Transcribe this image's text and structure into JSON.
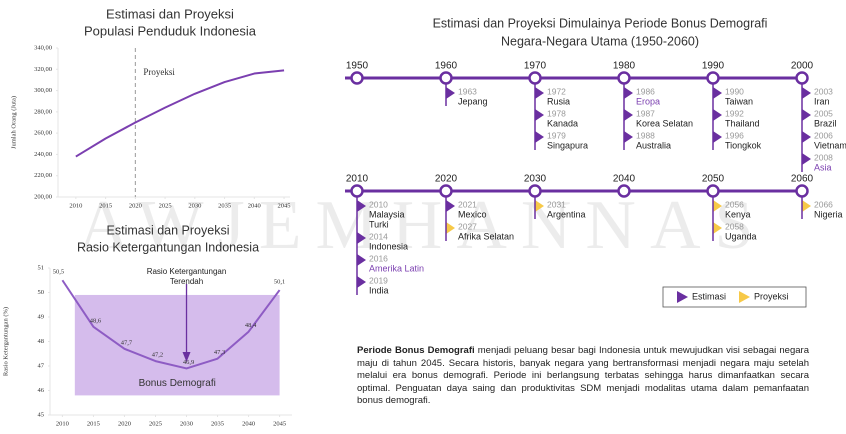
{
  "watermark": "AWJEMHANNAS",
  "chart_data": [
    {
      "type": "line",
      "title": [
        "Estimasi dan Proyeksi",
        "Populasi Penduduk Indonesia"
      ],
      "y_label": "Jumlah Orang (Juta)",
      "x": [
        2010,
        2015,
        2020,
        2025,
        2030,
        2035,
        2040,
        2045
      ],
      "series": [
        {
          "name": "Populasi",
          "color": "#7b3fb0",
          "values": [
            238,
            255,
            270,
            284,
            297,
            308,
            316,
            319
          ]
        }
      ],
      "xlim": [
        2007,
        2046
      ],
      "xticks": [
        2010,
        2015,
        2020,
        2025,
        2030,
        2035,
        2040,
        2045
      ],
      "ylim": [
        200,
        340
      ],
      "yticks": [
        {
          "value": 200,
          "label": "200,00"
        },
        {
          "value": 220,
          "label": "220,00"
        },
        {
          "value": 240,
          "label": "240,00"
        },
        {
          "value": 260,
          "label": "260,00"
        },
        {
          "value": 280,
          "label": "280,00"
        },
        {
          "value": 300,
          "label": "300,00"
        },
        {
          "value": 320,
          "label": "320,00"
        },
        {
          "value": 340,
          "label": "340,00"
        }
      ],
      "grid": false,
      "annotations": [
        {
          "text": [
            "Proyeksi"
          ],
          "x": 2020,
          "style": "dashed-line"
        }
      ]
    },
    {
      "type": "line",
      "title": [
        "Estimasi dan Proyeksi",
        "Rasio Ketergantungan Indonesia"
      ],
      "y_label": "Rasio Ketergantungan (%)",
      "x": [
        2010,
        2015,
        2020,
        2025,
        2030,
        2035,
        2040,
        2045
      ],
      "series": [
        {
          "name": "Rasio",
          "color": "#8e5cc4",
          "values": [
            50.5,
            48.6,
            47.7,
            47.2,
            46.9,
            47.3,
            48.4,
            50.1
          ],
          "value_labels": [
            "50,5",
            "48,6",
            "47,7",
            "47,2",
            "46,9",
            "47,3",
            "48,4",
            "50,1"
          ]
        }
      ],
      "xlim": [
        2008,
        2047
      ],
      "xticks": [
        2010,
        2015,
        2020,
        2025,
        2030,
        2035,
        2040,
        2045
      ],
      "ylim": [
        45,
        51
      ],
      "yticks": [
        45,
        46,
        47,
        48,
        49,
        50,
        51
      ],
      "grid": false,
      "band": {
        "label": "Bonus Demografi",
        "x": [
          2012,
          2045
        ],
        "y": [
          45.8,
          49.9
        ],
        "color": "#c7a6e6"
      },
      "annotations": [
        {
          "text": [
            "Rasio Ketergantungan",
            "Terendah"
          ],
          "x": 2030,
          "style": "arrow"
        }
      ]
    }
  ],
  "timeline": {
    "title": [
      "Estimasi dan Proyeksi Dimulainya Periode Bonus Demografi",
      "Negara-Negara Utama (1950-2060)"
    ],
    "rows": [
      {
        "decades": [
          {
            "label": "1950",
            "entries": []
          },
          {
            "label": "1960",
            "entries": [
              {
                "year": "1963",
                "names": [
                  "Jepang"
                ],
                "marker_color": "#6a2fa0"
              }
            ]
          },
          {
            "label": "1970",
            "entries": [
              {
                "year": "1972",
                "names": [
                  "Rusia"
                ],
                "marker_color": "#6a2fa0"
              },
              {
                "year": "1978",
                "names": [
                  "Kanada"
                ],
                "marker_color": "#6a2fa0"
              },
              {
                "year": "1979",
                "names": [
                  "Singapura"
                ],
                "marker_color": "#6a2fa0"
              }
            ]
          },
          {
            "label": "1980",
            "entries": [
              {
                "year": "1986",
                "names": [
                  "Eropa"
                ],
                "marker_color": "#6a2fa0",
                "name_color": "#7b3fb0"
              },
              {
                "year": "1987",
                "names": [
                  "Korea Selatan"
                ],
                "marker_color": "#6a2fa0"
              },
              {
                "year": "1988",
                "names": [
                  "Australia"
                ],
                "marker_color": "#6a2fa0"
              }
            ]
          },
          {
            "label": "1990",
            "entries": [
              {
                "year": "1990",
                "names": [
                  "Taiwan"
                ],
                "marker_color": "#6a2fa0"
              },
              {
                "year": "1992",
                "names": [
                  "Thailand"
                ],
                "marker_color": "#6a2fa0"
              },
              {
                "year": "1996",
                "names": [
                  "Tiongkok"
                ],
                "marker_color": "#6a2fa0"
              }
            ]
          },
          {
            "label": "2000",
            "entries": [
              {
                "year": "2003",
                "names": [
                  "Iran"
                ],
                "marker_color": "#6a2fa0"
              },
              {
                "year": "2005",
                "names": [
                  "Brazil"
                ],
                "marker_color": "#6a2fa0"
              },
              {
                "year": "2006",
                "names": [
                  "Vietnam"
                ],
                "marker_color": "#6a2fa0"
              },
              {
                "year": "2008",
                "names": [
                  "Asia"
                ],
                "marker_color": "#6a2fa0",
                "name_color": "#7b3fb0"
              }
            ]
          }
        ]
      },
      {
        "decades": [
          {
            "label": "2010",
            "entries": [
              {
                "year": "2010",
                "names": [
                  "Malaysia",
                  "Turki"
                ],
                "marker_color": "#6a2fa0"
              },
              {
                "year": "2014",
                "names": [
                  "Indonesia"
                ],
                "marker_color": "#6a2fa0"
              },
              {
                "year": "2016",
                "names": [
                  "Amerika Latin"
                ],
                "marker_color": "#6a2fa0",
                "name_color": "#7b3fb0"
              },
              {
                "year": "2019",
                "names": [
                  "India"
                ],
                "marker_color": "#6a2fa0"
              }
            ]
          },
          {
            "label": "2020",
            "entries": [
              {
                "year": "2021",
                "names": [
                  "Mexico"
                ],
                "marker_color": "#6a2fa0"
              },
              {
                "year": "2027",
                "names": [
                  "Afrika Selatan"
                ],
                "marker_color": "#f7c948"
              }
            ]
          },
          {
            "label": "2030",
            "entries": [
              {
                "year": "2031",
                "names": [
                  "Argentina"
                ],
                "marker_color": "#f7c948"
              }
            ]
          },
          {
            "label": "2040",
            "entries": []
          },
          {
            "label": "2050",
            "entries": [
              {
                "year": "2056",
                "names": [
                  "Kenya"
                ],
                "marker_color": "#f7c948"
              },
              {
                "year": "2058",
                "names": [
                  "Uganda"
                ],
                "marker_color": "#f7c948"
              }
            ]
          },
          {
            "label": "2060",
            "entries": [
              {
                "year": "2066",
                "names": [
                  "Nigeria"
                ],
                "marker_color": "#f7c948"
              }
            ]
          }
        ]
      }
    ],
    "legend": [
      {
        "name": "Estimasi",
        "color": "#6a2fa0"
      },
      {
        "name": "Proyeksi",
        "color": "#f7c948"
      }
    ]
  },
  "paragraph": {
    "bold": "Periode Bonus Demografi",
    "text": " menjadi peluang besar bagi Indonesia untuk mewujudkan visi sebagai negara maju di tahun 2045. Secara historis, banyak negara yang bertransformasi menjadi negara maju setelah melalui era bonus demografi. Periode ini berlangsung terbatas sehingga harus dimanfaatkan secara optimal. Penguatan daya saing dan produktivitas SDM menjadi modalitas utama dalam pemanfaatan bonus demografi."
  }
}
